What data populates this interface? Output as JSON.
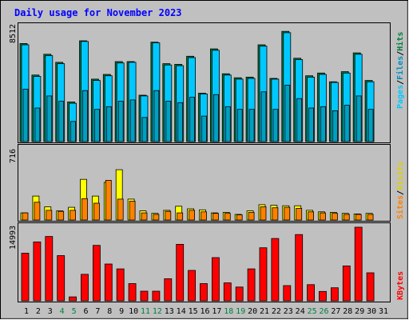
{
  "title": "Daily usage for November 2023",
  "colors": {
    "frame_bg": "#c0c0c0",
    "title": "#0000ff",
    "hits": "#008040",
    "files": "#00c8ff",
    "pages": "#00a0c0",
    "visits": "#ffff00",
    "sites": "#ff8000",
    "kbytes": "#ff0000",
    "weekend_day": "#008040",
    "weekday_day": "#000000"
  },
  "legends": {
    "top": [
      "Pages",
      "/",
      "Files",
      "/",
      "Hits"
    ],
    "middle": [
      "Sites",
      "/",
      "Visits"
    ],
    "bottom": [
      "KBytes"
    ]
  },
  "chart_data": [
    {
      "type": "bar",
      "name": "hits-files-pages",
      "y_max_label": "8512",
      "ylim": [
        0,
        8512
      ],
      "categories": [
        "1",
        "2",
        "3",
        "4",
        "5",
        "6",
        "7",
        "8",
        "9",
        "10",
        "11",
        "12",
        "13",
        "14",
        "15",
        "16",
        "17",
        "18",
        "19",
        "20",
        "21",
        "22",
        "23",
        "24",
        "25",
        "26",
        "27",
        "28",
        "29",
        "30",
        "31"
      ],
      "series": [
        {
          "name": "Hits",
          "values": [
            7300,
            4950,
            6500,
            5900,
            2950,
            7500,
            4650,
            5000,
            5950,
            5950,
            3450,
            7400,
            5800,
            5750,
            6350,
            3600,
            6900,
            5050,
            4750,
            4800,
            7200,
            4700,
            8200,
            6200,
            4900,
            5100,
            4450,
            5200,
            6600,
            4550,
            0
          ]
        },
        {
          "name": "Files",
          "values": [
            7200,
            4850,
            6400,
            5800,
            2850,
            7450,
            4550,
            4900,
            5850,
            5900,
            3400,
            7350,
            5700,
            5650,
            6250,
            3550,
            6800,
            4950,
            4650,
            4700,
            7100,
            4650,
            8100,
            6100,
            4800,
            5000,
            4400,
            5100,
            6500,
            4450,
            0
          ]
        },
        {
          "name": "Pages",
          "values": [
            3900,
            2500,
            3400,
            3000,
            1500,
            3800,
            2400,
            2600,
            3000,
            3100,
            1800,
            3800,
            3000,
            2900,
            3300,
            1900,
            3500,
            2600,
            2400,
            2400,
            3700,
            2400,
            4200,
            3200,
            2500,
            2600,
            2300,
            2700,
            3400,
            2400,
            0
          ]
        }
      ]
    },
    {
      "type": "bar",
      "name": "visits-sites",
      "y_max_label": "716",
      "ylim": [
        0,
        716
      ],
      "categories": [
        "1",
        "2",
        "3",
        "4",
        "5",
        "6",
        "7",
        "8",
        "9",
        "10",
        "11",
        "12",
        "13",
        "14",
        "15",
        "16",
        "17",
        "18",
        "19",
        "20",
        "21",
        "22",
        "23",
        "24",
        "25",
        "26",
        "27",
        "28",
        "29",
        "30",
        "31"
      ],
      "series": [
        {
          "name": "Visits",
          "values": [
            70,
            235,
            130,
            90,
            125,
            400,
            235,
            370,
            495,
            205,
            90,
            65,
            95,
            135,
            110,
            100,
            70,
            75,
            55,
            90,
            150,
            145,
            140,
            140,
            95,
            80,
            75,
            65,
            60,
            65,
            0
          ]
        },
        {
          "name": "Sites",
          "values": [
            70,
            175,
            95,
            85,
            95,
            210,
            165,
            390,
            205,
            185,
            70,
            55,
            85,
            70,
            95,
            80,
            65,
            65,
            50,
            75,
            130,
            120,
            125,
            115,
            80,
            70,
            65,
            55,
            55,
            55,
            0
          ]
        }
      ]
    },
    {
      "type": "bar",
      "name": "kbytes",
      "y_max_label": "14993",
      "ylim": [
        0,
        14993
      ],
      "categories": [
        "1",
        "2",
        "3",
        "4",
        "5",
        "6",
        "7",
        "8",
        "9",
        "10",
        "11",
        "12",
        "13",
        "14",
        "15",
        "16",
        "17",
        "18",
        "19",
        "20",
        "21",
        "22",
        "23",
        "24",
        "25",
        "26",
        "27",
        "28",
        "29",
        "30",
        "31"
      ],
      "series": [
        {
          "name": "KBytes",
          "values": [
            9700,
            12000,
            13100,
            9200,
            800,
            5400,
            11300,
            7500,
            6500,
            3500,
            1950,
            1950,
            4500,
            11500,
            6200,
            3500,
            8800,
            3650,
            2800,
            6500,
            10800,
            12700,
            3100,
            13500,
            3300,
            1900,
            2650,
            7100,
            14993,
            5700,
            0
          ]
        }
      ]
    }
  ],
  "days": [
    {
      "label": "1",
      "weekend": false
    },
    {
      "label": "2",
      "weekend": false
    },
    {
      "label": "3",
      "weekend": false
    },
    {
      "label": "4",
      "weekend": true
    },
    {
      "label": "5",
      "weekend": true
    },
    {
      "label": "6",
      "weekend": false
    },
    {
      "label": "7",
      "weekend": false
    },
    {
      "label": "8",
      "weekend": false
    },
    {
      "label": "9",
      "weekend": false
    },
    {
      "label": "10",
      "weekend": false
    },
    {
      "label": "11",
      "weekend": true
    },
    {
      "label": "12",
      "weekend": true
    },
    {
      "label": "13",
      "weekend": false
    },
    {
      "label": "14",
      "weekend": false
    },
    {
      "label": "15",
      "weekend": false
    },
    {
      "label": "16",
      "weekend": false
    },
    {
      "label": "17",
      "weekend": false
    },
    {
      "label": "18",
      "weekend": true
    },
    {
      "label": "19",
      "weekend": true
    },
    {
      "label": "20",
      "weekend": false
    },
    {
      "label": "21",
      "weekend": false
    },
    {
      "label": "22",
      "weekend": false
    },
    {
      "label": "23",
      "weekend": false
    },
    {
      "label": "24",
      "weekend": false
    },
    {
      "label": "25",
      "weekend": true
    },
    {
      "label": "26",
      "weekend": true
    },
    {
      "label": "27",
      "weekend": false
    },
    {
      "label": "28",
      "weekend": false
    },
    {
      "label": "29",
      "weekend": false
    },
    {
      "label": "30",
      "weekend": false
    },
    {
      "label": "31",
      "weekend": false
    }
  ]
}
